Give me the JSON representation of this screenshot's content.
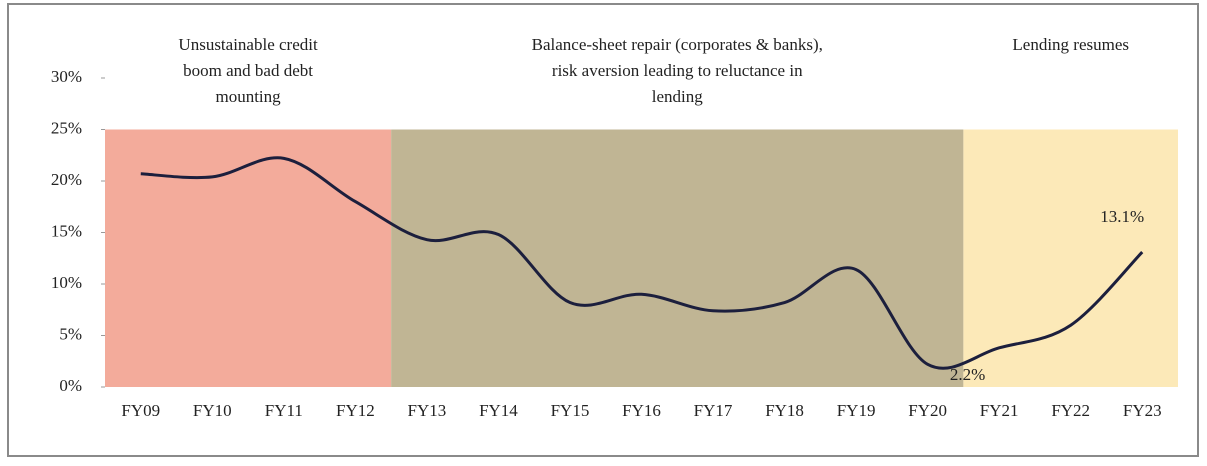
{
  "chart_data": {
    "type": "line",
    "categories": [
      "FY09",
      "FY10",
      "FY11",
      "FY12",
      "FY13",
      "FY14",
      "FY15",
      "FY16",
      "FY17",
      "FY18",
      "FY19",
      "FY20",
      "FY21",
      "FY22",
      "FY23"
    ],
    "series": [
      {
        "color": "#1c1f3d",
        "values": [
          20.7,
          20.4,
          22.2,
          18.0,
          14.3,
          14.8,
          8.2,
          9.0,
          7.4,
          8.2,
          11.4,
          2.2,
          3.8,
          6.0,
          13.1
        ],
        "value_labels": [
          null,
          null,
          null,
          null,
          null,
          null,
          null,
          null,
          null,
          null,
          null,
          "2.2%",
          null,
          null,
          "13.1%"
        ]
      }
    ],
    "ylim": [
      0,
      30
    ],
    "yticks": [
      {
        "value": 0,
        "label": "0%"
      },
      {
        "value": 5,
        "label": "5%"
      },
      {
        "value": 10,
        "label": "10%"
      },
      {
        "value": 15,
        "label": "15%"
      },
      {
        "value": 20,
        "label": "20%"
      },
      {
        "value": 25,
        "label": "25%"
      },
      {
        "value": 30,
        "label": "30%"
      }
    ],
    "regions": [
      {
        "lines": [
          "Unsustainable credit",
          "boom and bad debt",
          "mounting"
        ],
        "from": "FY09",
        "to": "FY12",
        "top": 25,
        "color": "#f3ab9b"
      },
      {
        "lines": [
          "Balance-sheet repair (corporates & banks),",
          "risk aversion leading to reluctance in",
          "lending"
        ],
        "from": "FY13",
        "to": "FY20",
        "top": 25,
        "color": "#c0b594"
      },
      {
        "lines": [
          "Lending resumes"
        ],
        "from": "FY21",
        "to": "FY23",
        "top": 25,
        "color": "#fce9b8"
      }
    ]
  }
}
